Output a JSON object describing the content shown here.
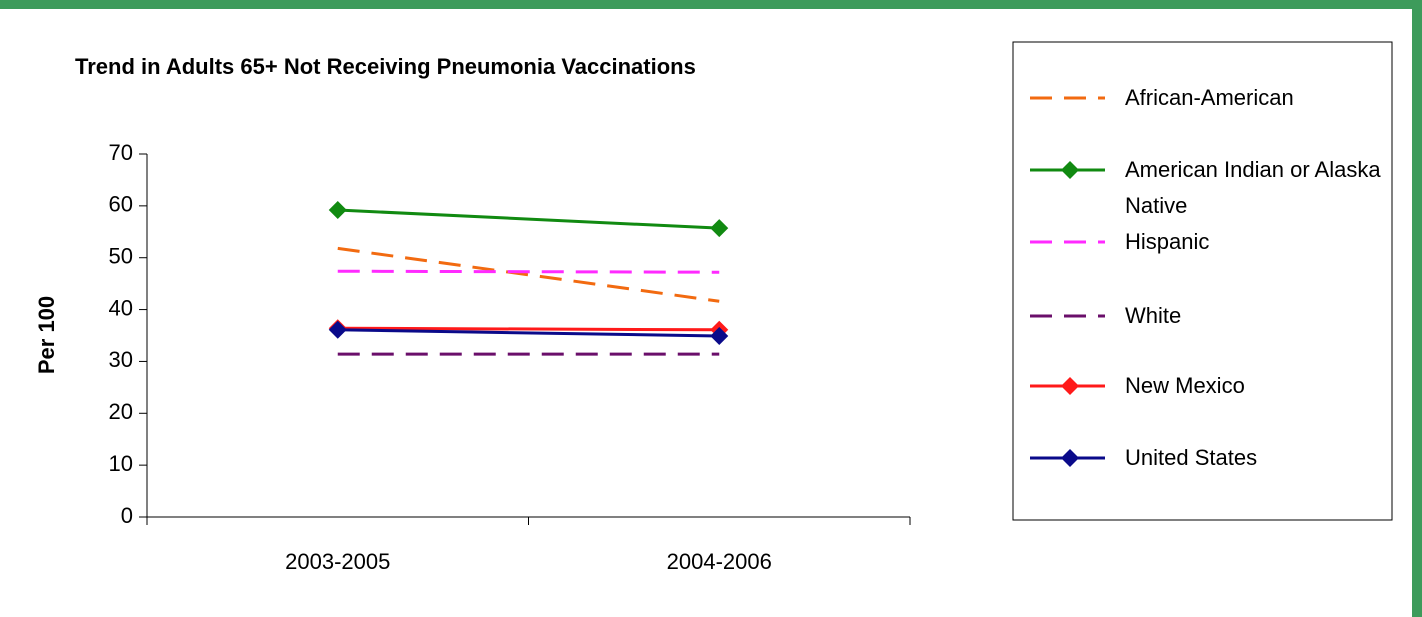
{
  "chart_data": {
    "type": "line",
    "title": "Trend in Adults 65+ Not Receiving Pneumonia Vaccinations",
    "y_label": "Per 100",
    "categories": [
      "2003-2005",
      "2004-2006"
    ],
    "ylim": [
      0,
      70
    ],
    "yticks": [
      0,
      10,
      20,
      30,
      40,
      50,
      60,
      70
    ],
    "legend": "right",
    "series": [
      {
        "name": "African-American",
        "color": "#f26a10",
        "dashed": true,
        "marker": false,
        "values": [
          51.8,
          41.6
        ]
      },
      {
        "name": "American Indian or Alaska Native",
        "color": "#118a11",
        "dashed": false,
        "marker": true,
        "values": [
          59.2,
          55.7
        ]
      },
      {
        "name": "Hispanic",
        "color": "#ff2aff",
        "dashed": true,
        "marker": false,
        "values": [
          47.4,
          47.2
        ]
      },
      {
        "name": "White",
        "color": "#6a0e6a",
        "dashed": true,
        "marker": false,
        "values": [
          31.4,
          31.4
        ]
      },
      {
        "name": "New Mexico",
        "color": "#ff1a1a",
        "dashed": false,
        "marker": true,
        "values": [
          36.4,
          36.1
        ]
      },
      {
        "name": "United States",
        "color": "#0a0a8a",
        "dashed": false,
        "marker": true,
        "values": [
          36.1,
          34.9
        ]
      }
    ]
  }
}
